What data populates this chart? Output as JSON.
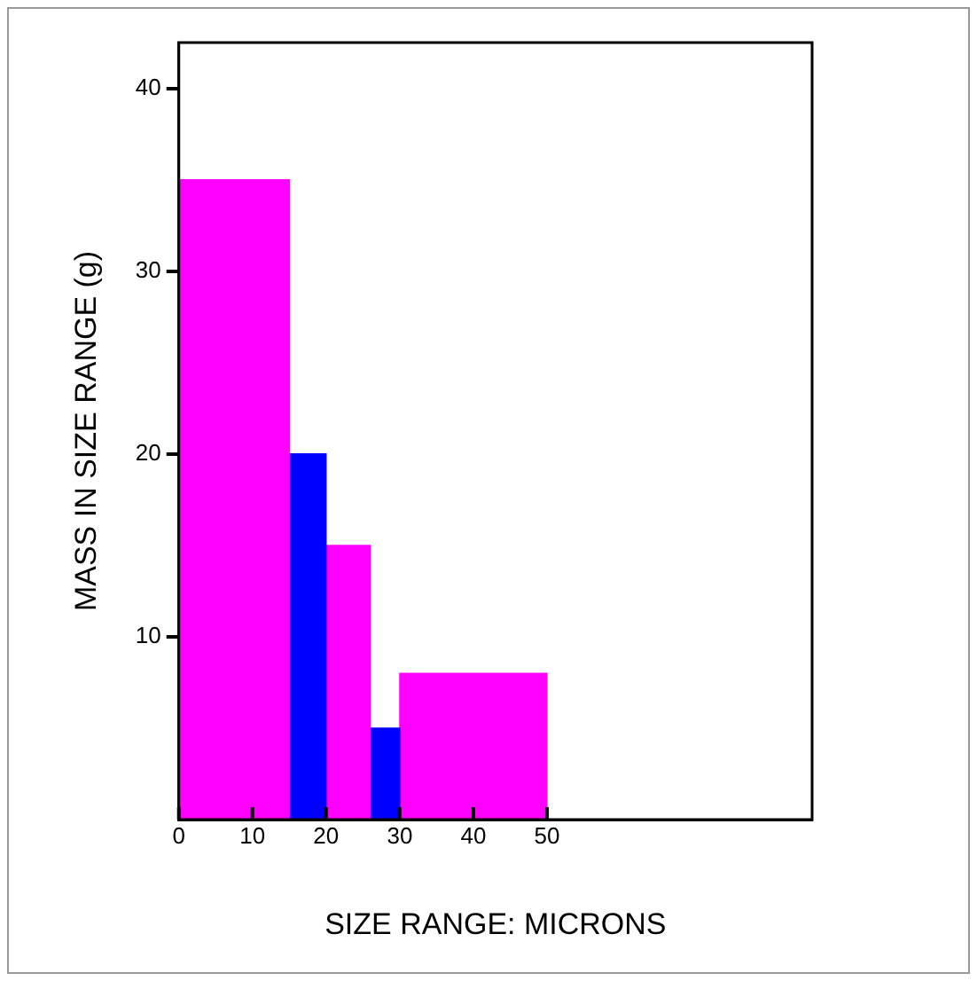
{
  "chart_data": {
    "type": "histogram",
    "xlabel": "SIZE RANGE: MICRONS",
    "ylabel": "MASS IN SIZE RANGE (g)",
    "bins": [
      0,
      15,
      20,
      26,
      30,
      50
    ],
    "values": [
      35,
      20,
      15,
      5,
      8
    ],
    "colors": [
      "#ff00ff",
      "#0000ff",
      "#ff00ff",
      "#0000ff",
      "#ff00ff"
    ],
    "xlim": [
      0,
      86
    ],
    "xticks": [
      0,
      10,
      20,
      30,
      40,
      50
    ],
    "ylim": [
      0,
      42.5
    ],
    "yticks": [
      10,
      20,
      30,
      40
    ],
    "grid": false
  }
}
